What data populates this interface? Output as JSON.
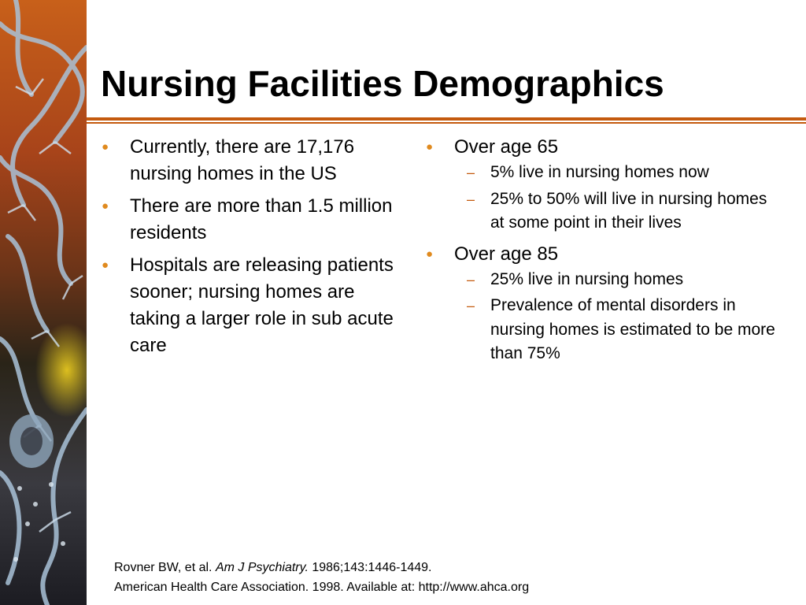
{
  "slide": {
    "title": "Nursing Facilities Demographics",
    "colors": {
      "accent_rule": "#c45a0e",
      "bullet": "#e08a1e",
      "dash": "#c45a0e"
    },
    "side_art_icon": "neuron-illustration-icon",
    "left_bullets": [
      "Currently, there are 17,176 nursing homes in the US",
      "There are more than 1.5 million residents",
      "Hospitals are releasing patients sooner; nursing homes are taking a larger role in sub acute care"
    ],
    "right_bullets": [
      {
        "text": "Over age 65",
        "sub": [
          "5% live in nursing homes now",
          "25% to 50% will live in nursing homes at some point in their lives"
        ]
      },
      {
        "text": "Over age 85",
        "sub": [
          "25% live in nursing homes",
          "Prevalence of mental disorders in nursing homes is estimated to be more than 75%"
        ]
      }
    ],
    "bullet_glyph": "●",
    "dash_glyph": "–",
    "references": {
      "ref1_authors": "Rovner BW, et al. ",
      "ref1_journal": "Am J Psychiatry.",
      "ref1_details": " 1986;143:1446-1449.",
      "ref2": "American Health Care Association. 1998. Available at: http://www.ahca.org"
    }
  }
}
